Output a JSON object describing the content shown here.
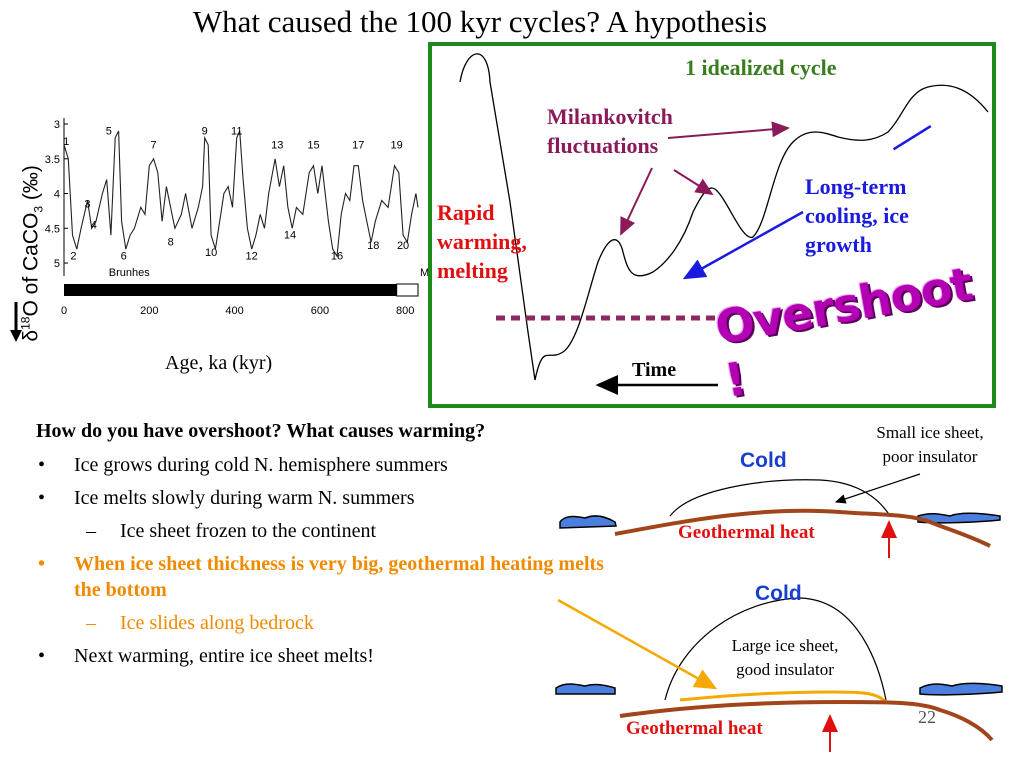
{
  "title": "What caused the 100 kyr cycles? A hypothesis",
  "chart_data": {
    "type": "line",
    "ylabel": "δ18O of CaCO3 (‰)",
    "xlabel": "Age, ka (kyr)",
    "x_ticks": [
      "0",
      "200",
      "400",
      "600",
      "800"
    ],
    "y_ticks": [
      "3",
      "3.5",
      "4",
      "4.5",
      "5"
    ],
    "xlim": [
      0,
      830
    ],
    "ylim": [
      3,
      5.1
    ],
    "y_inverted": true,
    "bar_label": "Brunhes",
    "bar_end_label": "M",
    "stage_labels": [
      {
        "label": "1",
        "x": 5,
        "y": 3.3
      },
      {
        "label": "2",
        "x": 22,
        "y": 4.95
      },
      {
        "label": "3",
        "x": 55,
        "y": 4.2
      },
      {
        "label": "4",
        "x": 70,
        "y": 4.5
      },
      {
        "label": "5",
        "x": 105,
        "y": 3.15
      },
      {
        "label": "6",
        "x": 140,
        "y": 4.95
      },
      {
        "label": "7",
        "x": 210,
        "y": 3.35
      },
      {
        "label": "8",
        "x": 250,
        "y": 4.75
      },
      {
        "label": "9",
        "x": 330,
        "y": 3.15
      },
      {
        "label": "10",
        "x": 345,
        "y": 4.9
      },
      {
        "label": "11",
        "x": 405,
        "y": 3.15
      },
      {
        "label": "12",
        "x": 440,
        "y": 4.95
      },
      {
        "label": "13",
        "x": 500,
        "y": 3.35
      },
      {
        "label": "14",
        "x": 530,
        "y": 4.65
      },
      {
        "label": "15",
        "x": 585,
        "y": 3.35
      },
      {
        "label": "16",
        "x": 640,
        "y": 4.95
      },
      {
        "label": "17",
        "x": 690,
        "y": 3.35
      },
      {
        "label": "18",
        "x": 725,
        "y": 4.8
      },
      {
        "label": "19",
        "x": 780,
        "y": 3.35
      },
      {
        "label": "20",
        "x": 795,
        "y": 4.8
      }
    ],
    "series": [
      {
        "values": [
          [
            0,
            3.3
          ],
          [
            10,
            3.5
          ],
          [
            20,
            4.6
          ],
          [
            30,
            4.8
          ],
          [
            40,
            4.5
          ],
          [
            55,
            4.1
          ],
          [
            65,
            4.5
          ],
          [
            75,
            4.4
          ],
          [
            90,
            4.0
          ],
          [
            100,
            3.8
          ],
          [
            110,
            4.6
          ],
          [
            120,
            3.2
          ],
          [
            128,
            3.1
          ],
          [
            135,
            4.4
          ],
          [
            145,
            4.8
          ],
          [
            155,
            4.6
          ],
          [
            165,
            4.5
          ],
          [
            180,
            4.2
          ],
          [
            190,
            4.3
          ],
          [
            200,
            3.6
          ],
          [
            210,
            3.5
          ],
          [
            220,
            3.7
          ],
          [
            230,
            4.4
          ],
          [
            240,
            3.9
          ],
          [
            250,
            4.2
          ],
          [
            260,
            4.5
          ],
          [
            275,
            4.3
          ],
          [
            285,
            4.0
          ],
          [
            300,
            4.5
          ],
          [
            315,
            4.2
          ],
          [
            325,
            3.9
          ],
          [
            330,
            3.2
          ],
          [
            338,
            3.3
          ],
          [
            345,
            4.6
          ],
          [
            355,
            4.8
          ],
          [
            365,
            4.4
          ],
          [
            375,
            4.0
          ],
          [
            385,
            3.9
          ],
          [
            395,
            4.2
          ],
          [
            405,
            3.2
          ],
          [
            412,
            3.1
          ],
          [
            420,
            3.8
          ],
          [
            430,
            4.5
          ],
          [
            440,
            4.8
          ],
          [
            450,
            4.6
          ],
          [
            460,
            4.3
          ],
          [
            470,
            4.5
          ],
          [
            480,
            4.0
          ],
          [
            495,
            3.5
          ],
          [
            505,
            3.9
          ],
          [
            515,
            3.6
          ],
          [
            525,
            4.2
          ],
          [
            535,
            4.5
          ],
          [
            545,
            4.2
          ],
          [
            560,
            4.3
          ],
          [
            575,
            3.7
          ],
          [
            585,
            3.6
          ],
          [
            595,
            4.0
          ],
          [
            605,
            3.6
          ],
          [
            620,
            4.4
          ],
          [
            630,
            4.8
          ],
          [
            640,
            4.9
          ],
          [
            650,
            4.3
          ],
          [
            660,
            4.0
          ],
          [
            670,
            4.1
          ],
          [
            680,
            3.6
          ],
          [
            690,
            3.6
          ],
          [
            700,
            4.1
          ],
          [
            710,
            4.4
          ],
          [
            720,
            4.7
          ],
          [
            730,
            4.4
          ],
          [
            745,
            4.1
          ],
          [
            760,
            4.2
          ],
          [
            775,
            3.6
          ],
          [
            785,
            3.7
          ],
          [
            795,
            4.6
          ],
          [
            805,
            4.7
          ],
          [
            815,
            4.3
          ],
          [
            825,
            4.0
          ],
          [
            830,
            4.2
          ]
        ]
      }
    ]
  },
  "cycle_box": {
    "title": "1 idealized cycle",
    "milankovitch_line1": "Milankovitch",
    "milankovitch_line2": "fluctuations",
    "rapid_line1": "Rapid",
    "rapid_line2": "warming,",
    "rapid_line3": "melting",
    "longterm_line1": "Long-term",
    "longterm_line2": "cooling, ice",
    "longterm_line3": "growth",
    "time_label": "Time",
    "overshoot": "Overshoot !"
  },
  "bullets": {
    "question": "How do you have overshoot? What causes warming?",
    "marker": "•",
    "dash": "–",
    "b1": "Ice grows during cold N. hemisphere summers",
    "b2": "Ice melts slowly during warm N. summers",
    "b2_sub": "Ice sheet frozen to the continent",
    "b3": "When ice sheet thickness is very big, geothermal heating melts the bottom",
    "b3_sub": "Ice slides along bedrock",
    "b4": "Next warming, entire ice sheet melts!"
  },
  "diagrams": {
    "cold": "Cold",
    "geothermal": "Geothermal heat",
    "small_ice_line1": "Small ice sheet,",
    "small_ice_line2": "poor insulator",
    "large_ice_line1": "Large ice sheet,",
    "large_ice_line2": "good insulator"
  },
  "page_number": "22",
  "colors": {
    "green_box": "#1e8a1e",
    "cycle_title": "#3a7d1f",
    "milankovitch": "#8b1a5a",
    "rapid": "#e01010",
    "longterm": "#1a1ae0",
    "orange": "#f08a00",
    "bedrock": "#a0461a",
    "water": "#4a7fe0"
  }
}
